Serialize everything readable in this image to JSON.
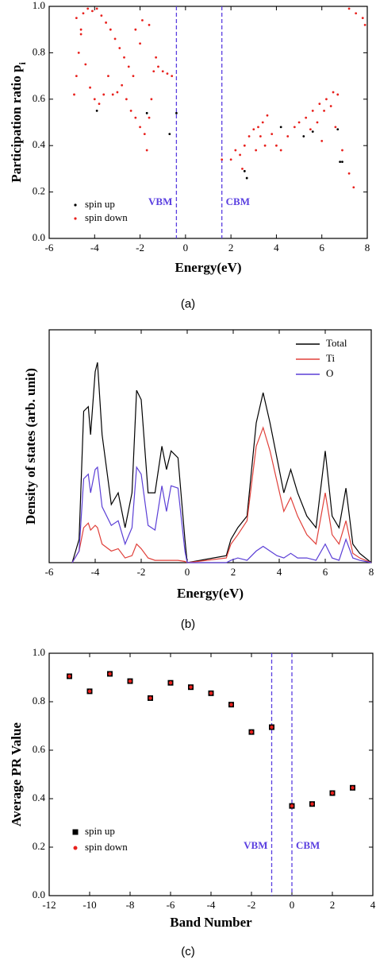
{
  "chart_data": [
    {
      "type": "scatter",
      "caption": "(a)",
      "x_label": "Energy(eV)",
      "y_label": "Participation ratio p",
      "y_label_subscript": "i",
      "xlim": [
        -6,
        8
      ],
      "xticks": [
        -6,
        -4,
        -2,
        0,
        2,
        4,
        6,
        8
      ],
      "ylim": [
        0,
        1
      ],
      "yticks": [
        {
          "value": 0,
          "label": "0.0"
        },
        {
          "value": 0.2,
          "label": "0.2"
        },
        {
          "value": 0.4,
          "label": "0.4"
        },
        {
          "value": 0.6,
          "label": "0.6"
        },
        {
          "value": 0.8,
          "label": "0.8"
        },
        {
          "value": 1,
          "label": "1.0"
        }
      ],
      "legend": "lower left",
      "reference_lines": [
        {
          "x": -0.4,
          "label": "VBM"
        },
        {
          "x": 1.6,
          "label": "CBM"
        }
      ],
      "series": [
        {
          "name": "spin up",
          "color": "#000000",
          "marker": "dot",
          "x": [
            -3.9,
            -1.7,
            -0.4,
            -0.7,
            2.6,
            2.7,
            4.2,
            5.2,
            5.6,
            6.7,
            6.8,
            6.9
          ],
          "values": [
            0.55,
            0.54,
            0.54,
            0.45,
            0.29,
            0.26,
            0.48,
            0.44,
            0.46,
            0.47,
            0.33,
            0.33
          ]
        },
        {
          "name": "spin down",
          "color": "#e8211d",
          "marker": "dot",
          "x": [
            -4.9,
            -4.8,
            -4.7,
            -4.6,
            -4.5,
            -4.3,
            -4.1,
            -3.9,
            -3.7,
            -3.5,
            -3.3,
            -3.1,
            -2.9,
            -2.7,
            -2.5,
            -2.3,
            -4.8,
            -4.6,
            -4.4,
            -4.2,
            -4.0,
            -3.8,
            -3.6,
            -3.4,
            -3.2,
            -3.0,
            -2.8,
            -2.6,
            -2.4,
            -2.2,
            -2.0,
            -1.8,
            -1.7,
            -1.6,
            -1.5,
            -1.4,
            -1.3,
            -1.2,
            -1.0,
            -0.8,
            -0.6,
            -1.6,
            -1.9,
            -2.2,
            -2.0,
            1.6,
            2.0,
            2.4,
            2.6,
            2.8,
            3.0,
            3.2,
            3.4,
            3.6,
            3.8,
            2.2,
            2.5,
            3.1,
            3.3,
            3.5,
            4.0,
            4.2,
            4.5,
            4.8,
            5.0,
            5.3,
            5.6,
            5.9,
            6.2,
            6.5,
            6.7,
            5.5,
            5.8,
            6.1,
            6.4,
            6.0,
            6.6,
            6.9,
            7.2,
            7.4,
            7.2,
            7.5,
            7.8,
            7.9
          ],
          "values": [
            0.62,
            0.7,
            0.8,
            0.9,
            0.97,
            0.99,
            0.98,
            0.99,
            0.96,
            0.93,
            0.9,
            0.86,
            0.82,
            0.78,
            0.74,
            0.7,
            0.95,
            0.88,
            0.75,
            0.65,
            0.6,
            0.58,
            0.62,
            0.7,
            0.62,
            0.63,
            0.66,
            0.6,
            0.55,
            0.52,
            0.48,
            0.45,
            0.38,
            0.52,
            0.6,
            0.72,
            0.78,
            0.74,
            0.72,
            0.71,
            0.7,
            0.92,
            0.94,
            0.9,
            0.84,
            0.34,
            0.34,
            0.36,
            0.4,
            0.44,
            0.47,
            0.48,
            0.5,
            0.53,
            0.45,
            0.38,
            0.3,
            0.38,
            0.44,
            0.4,
            0.4,
            0.38,
            0.44,
            0.48,
            0.5,
            0.52,
            0.55,
            0.58,
            0.6,
            0.63,
            0.62,
            0.47,
            0.5,
            0.55,
            0.57,
            0.42,
            0.48,
            0.38,
            0.28,
            0.22,
            0.99,
            0.97,
            0.95,
            0.92
          ]
        }
      ]
    },
    {
      "type": "line",
      "caption": "(b)",
      "x_label": "Energy(eV)",
      "y_label": "Density of states (arb. unit)",
      "xlim": [
        -6,
        8
      ],
      "xticks": [
        -6,
        -4,
        -2,
        0,
        2,
        4,
        6,
        8
      ],
      "ylim": [
        0,
        100
      ],
      "legend": "upper right",
      "x": [
        -5,
        -4.7,
        -4.5,
        -4.3,
        -4.2,
        -4.0,
        -3.9,
        -3.7,
        -3.3,
        -3.0,
        -2.7,
        -2.4,
        -2.2,
        -2.0,
        -1.7,
        -1.4,
        -1.1,
        -0.9,
        -0.7,
        -0.4,
        -0.1,
        0,
        1.7,
        1.9,
        2.2,
        2.6,
        3.0,
        3.3,
        3.6,
        3.9,
        4.2,
        4.5,
        4.8,
        5.2,
        5.6,
        6.0,
        6.3,
        6.6,
        6.9,
        7.2,
        7.5,
        8
      ],
      "series": [
        {
          "name": "Total",
          "color": "#000000",
          "values": [
            0,
            10,
            65,
            67,
            55,
            82,
            86,
            55,
            25,
            30,
            15,
            30,
            74,
            70,
            30,
            30,
            50,
            40,
            48,
            45,
            10,
            0,
            3,
            10,
            15,
            20,
            60,
            73,
            60,
            45,
            30,
            40,
            30,
            20,
            15,
            48,
            20,
            15,
            32,
            8,
            4,
            0
          ]
        },
        {
          "name": "Ti",
          "color": "#e0403a",
          "values": [
            0,
            5,
            15,
            17,
            14,
            16,
            15,
            8,
            5,
            6,
            2,
            3,
            8,
            6,
            2,
            1,
            1,
            1,
            1,
            1,
            0.5,
            0,
            2,
            8,
            12,
            18,
            50,
            58,
            48,
            35,
            22,
            28,
            20,
            12,
            8,
            30,
            12,
            8,
            18,
            4,
            2,
            0
          ]
        },
        {
          "name": "O",
          "color": "#5b3fd6",
          "values": [
            0,
            5,
            36,
            38,
            30,
            40,
            41,
            24,
            16,
            18,
            8,
            15,
            41,
            38,
            16,
            14,
            33,
            22,
            33,
            32,
            5,
            0,
            0,
            1,
            2,
            1,
            5,
            7,
            5,
            3,
            2,
            4,
            2,
            2,
            1,
            8,
            2,
            1,
            10,
            2,
            1,
            0
          ]
        }
      ]
    },
    {
      "type": "scatter",
      "caption": "(c)",
      "x_label": "Band Number",
      "y_label": "Average PR Value",
      "xlim": [
        -12,
        4
      ],
      "xticks": [
        -12,
        -10,
        -8,
        -6,
        -4,
        -2,
        0,
        2,
        4
      ],
      "ylim": [
        0,
        1
      ],
      "yticks": [
        {
          "value": 0,
          "label": "0.0"
        },
        {
          "value": 0.2,
          "label": "0.2"
        },
        {
          "value": 0.4,
          "label": "0.4"
        },
        {
          "value": 0.6,
          "label": "0.6"
        },
        {
          "value": 0.8,
          "label": "0.8"
        },
        {
          "value": 1,
          "label": "1.0"
        }
      ],
      "legend": "lower left",
      "reference_lines": [
        {
          "x": -1,
          "label": "VBM"
        },
        {
          "x": 0,
          "label": "CBM"
        }
      ],
      "series": [
        {
          "name": "spin up",
          "color": "#000000",
          "marker": "square",
          "x": [
            -11,
            -10,
            -9,
            -8,
            -7,
            -6,
            -5,
            -4,
            -3,
            -2,
            -1,
            0,
            1,
            2,
            3
          ],
          "values": [
            0.905,
            0.843,
            0.915,
            0.885,
            0.815,
            0.878,
            0.86,
            0.835,
            0.788,
            0.675,
            0.695,
            0.37,
            0.378,
            0.423,
            0.445
          ]
        },
        {
          "name": "spin down",
          "color": "#e8211d",
          "marker": "circle",
          "x": [
            -11,
            -10,
            -9,
            -8,
            -7,
            -6,
            -5,
            -4,
            -3,
            -2,
            -1,
            0,
            1,
            2,
            3
          ],
          "values": [
            0.905,
            0.843,
            0.915,
            0.885,
            0.815,
            0.878,
            0.86,
            0.835,
            0.788,
            0.675,
            0.695,
            0.37,
            0.378,
            0.423,
            0.445
          ]
        }
      ]
    }
  ]
}
